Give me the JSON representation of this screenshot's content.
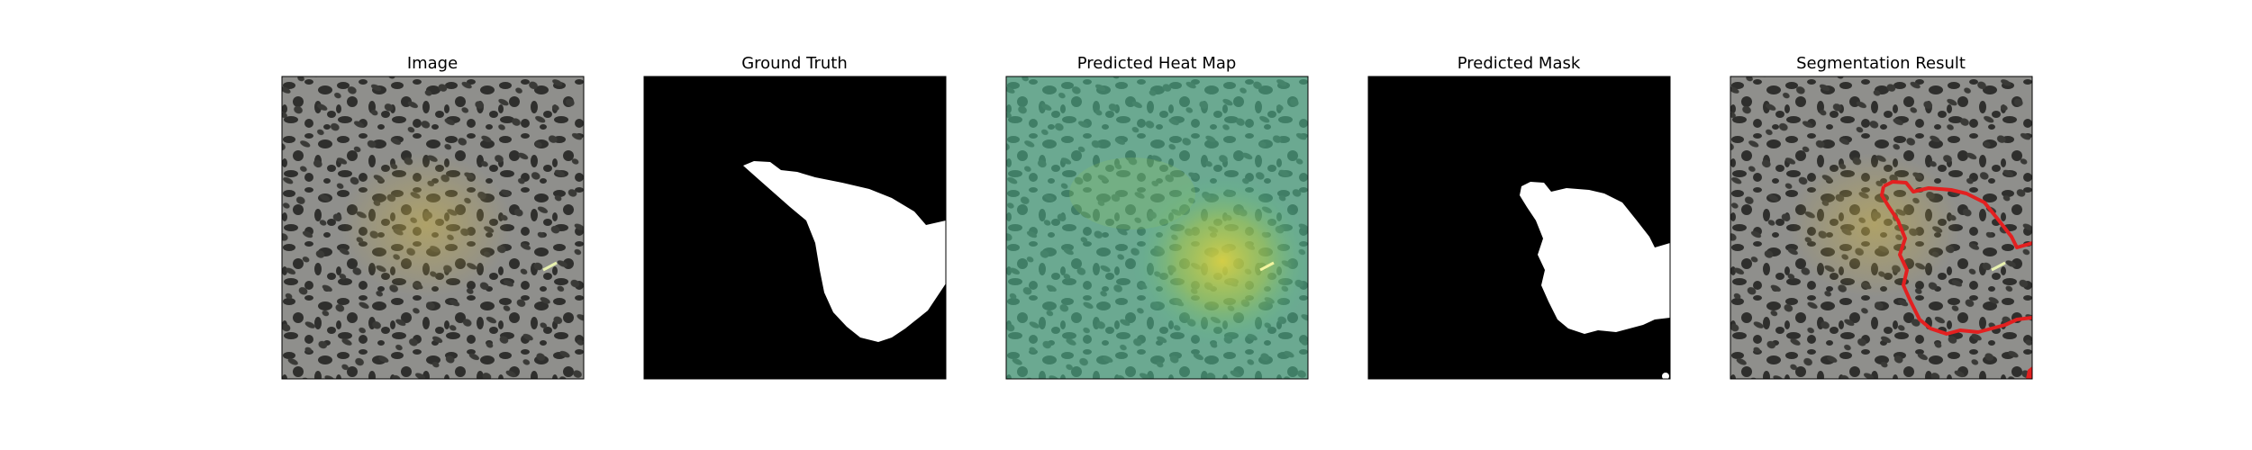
{
  "panels": [
    {
      "title": "Image"
    },
    {
      "title": "Ground Truth"
    },
    {
      "title": "Predicted Heat Map"
    },
    {
      "title": "Predicted Mask"
    },
    {
      "title": "Segmentation Result"
    }
  ],
  "colors": {
    "background": "#ffffff",
    "tissue_gray": "#8f8f8c",
    "tissue_spots": "#2f2f2d",
    "lesion_tint": "#b9a348",
    "mask_foreground": "#ffffff",
    "mask_background": "#000000",
    "heatmap_cold": "#4fbf96",
    "heatmap_hot": "#e0d23a",
    "contour": "#e32020"
  }
}
